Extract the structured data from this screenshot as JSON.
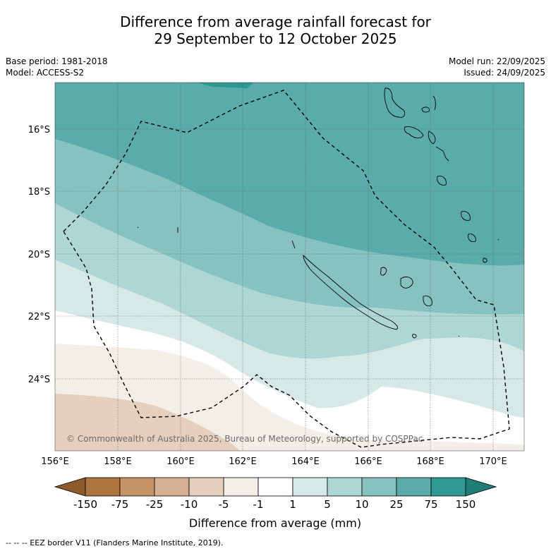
{
  "title": {
    "line1": "Difference from average rainfall forecast for",
    "line2": "29 September to 12 October 2025"
  },
  "meta_left": {
    "base_period": "Base period: 1981-2018",
    "model": "Model: ACCESS-S2"
  },
  "meta_right": {
    "model_run": "Model run: 22/09/2025",
    "issued": "Issued: 24/09/2025"
  },
  "map": {
    "lat_labels": [
      "16°S",
      "18°S",
      "20°S",
      "22°S",
      "24°S"
    ],
    "lon_labels": [
      "156°E",
      "158°E",
      "160°E",
      "162°E",
      "164°E",
      "166°E",
      "168°E",
      "170°E"
    ],
    "copyright": "© Commonwealth of Australia 2025, Bureau of Meteorology, supported by COSPPac"
  },
  "colorbar": {
    "ticks": [
      "-150",
      "-75",
      "-25",
      "-10",
      "-5",
      "-1",
      "1",
      "5",
      "10",
      "25",
      "75",
      "150"
    ],
    "colors": [
      "#8f5a2a",
      "#ad753e",
      "#c49366",
      "#d5b092",
      "#e6d0bd",
      "#f3efe8",
      "#ffffff",
      "#d6e9e7",
      "#aed6d4",
      "#86c3c0",
      "#5aacab",
      "#2f9892",
      "#1f7d77"
    ],
    "label": "Difference from average (mm)"
  },
  "footer": "--  --  -- EEZ border V11 (Flanders Marine Institute, 2019)."
}
